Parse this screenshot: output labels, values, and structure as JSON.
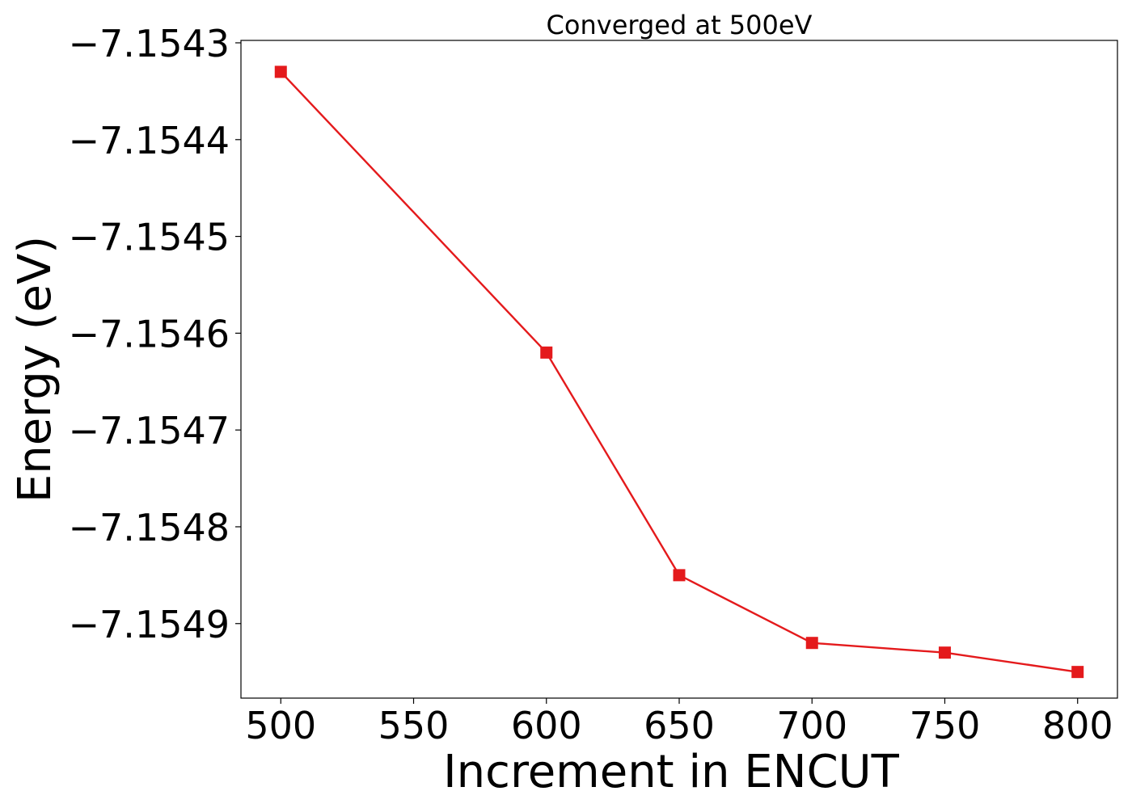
{
  "chart_data": {
    "type": "line",
    "title": "Converged at 500eV",
    "xlabel": "Increment in ENCUT",
    "ylabel": "Energy (eV)",
    "x": [
      500,
      600,
      650,
      700,
      750,
      800
    ],
    "series": [
      {
        "values": [
          -7.15433,
          -7.15462,
          -7.15485,
          -7.15492,
          -7.15493,
          -7.15495
        ],
        "color": "#e41a1c",
        "marker": "square"
      }
    ],
    "xticks": [
      500,
      550,
      600,
      650,
      700,
      750,
      800
    ],
    "xtick_labels": [
      "500",
      "550",
      "600",
      "650",
      "700",
      "750",
      "800"
    ],
    "yticks": [
      -7.1543,
      -7.1544,
      -7.1545,
      -7.1546,
      -7.1547,
      -7.1548,
      -7.1549
    ],
    "ytick_labels": [
      "−7.1543",
      "−7.1544",
      "−7.1545",
      "−7.1546",
      "−7.1547",
      "−7.1548",
      "−7.1549"
    ],
    "xlim": [
      485,
      815
    ],
    "ylim": [
      -7.154977,
      -7.1542975
    ],
    "grid": false,
    "legend": "none"
  }
}
